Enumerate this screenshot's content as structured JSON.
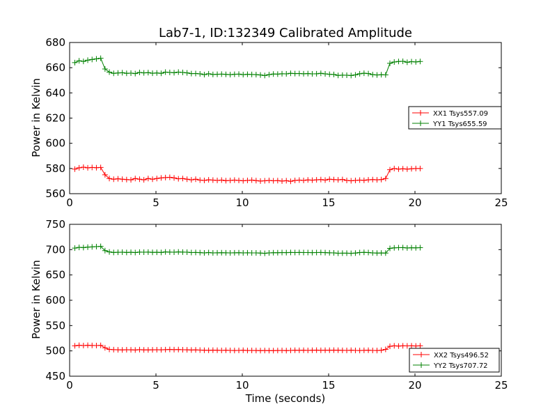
{
  "chart_data": [
    {
      "type": "line",
      "title": "Lab7-1, ID:132349 Calibrated Amplitude",
      "xlabel": "",
      "ylabel": "Power in Kelvin",
      "xlim": [
        0,
        25
      ],
      "ylim": [
        560,
        680
      ],
      "xticks": [
        0,
        5,
        10,
        15,
        20,
        25
      ],
      "yticks": [
        560,
        580,
        600,
        620,
        640,
        660,
        680
      ],
      "grid": false,
      "legend_position": "right",
      "x": [
        0.3,
        0.55,
        0.8,
        1.05,
        1.3,
        1.55,
        1.8,
        2.05,
        2.3,
        2.55,
        2.8,
        3.05,
        3.3,
        3.55,
        3.8,
        4.05,
        4.3,
        4.55,
        4.8,
        5.05,
        5.3,
        5.55,
        5.8,
        6.05,
        6.3,
        6.55,
        6.8,
        7.05,
        7.3,
        7.55,
        7.8,
        8.05,
        8.3,
        8.55,
        8.8,
        9.05,
        9.3,
        9.55,
        9.8,
        10.05,
        10.3,
        10.55,
        10.8,
        11.05,
        11.3,
        11.55,
        11.8,
        12.05,
        12.3,
        12.55,
        12.8,
        13.05,
        13.3,
        13.55,
        13.8,
        14.05,
        14.3,
        14.55,
        14.8,
        15.05,
        15.3,
        15.55,
        15.8,
        16.05,
        16.3,
        16.55,
        16.8,
        17.05,
        17.3,
        17.55,
        17.8,
        18.05,
        18.3,
        18.55,
        18.8,
        19.05,
        19.3,
        19.55,
        19.8,
        20.05,
        20.3
      ],
      "series": [
        {
          "name": "XX1 Tsys557.09",
          "color": "#ff0000",
          "values": [
            579.5,
            580.5,
            581,
            580.5,
            580.8,
            580.6,
            580.8,
            575,
            572,
            571.5,
            571.8,
            571.5,
            571.2,
            571,
            572,
            571.5,
            571,
            572,
            571.5,
            572,
            572.5,
            572.8,
            573,
            572.5,
            571.8,
            572,
            571.5,
            571,
            571.5,
            570.8,
            570.5,
            571,
            570.8,
            570.5,
            570.8,
            570.3,
            570.5,
            570.8,
            570.5,
            570.2,
            570.5,
            570.8,
            570.4,
            570,
            570.2,
            570.5,
            570.2,
            570.4,
            570,
            570.3,
            569.8,
            570.5,
            570.8,
            570.5,
            570.9,
            570.7,
            571,
            571.2,
            570.8,
            571.5,
            571.2,
            571,
            571.3,
            570.5,
            570.2,
            570.5,
            570.8,
            570.6,
            571,
            571.2,
            571,
            571.2,
            572,
            579,
            580,
            579.5,
            579.8,
            579.5,
            579.8,
            580,
            580
          ]
        },
        {
          "name": "YY1 Tsys655.59",
          "color": "#008000",
          "values": [
            664,
            665.5,
            665,
            666,
            666.5,
            667,
            667.5,
            659,
            656.5,
            655.5,
            655.8,
            656,
            655.5,
            655.7,
            655.3,
            656.2,
            655.9,
            656.1,
            655.6,
            655.8,
            655.5,
            656.5,
            656.2,
            656,
            656.5,
            656.2,
            655.9,
            655.3,
            655.4,
            655.1,
            654.5,
            655.2,
            654.6,
            654.8,
            654.9,
            654.7,
            654.5,
            654.8,
            654.9,
            654.5,
            654.8,
            654.6,
            654.5,
            654.2,
            653.8,
            654.5,
            655,
            654.9,
            655.2,
            655.1,
            655.5,
            655.3,
            655.4,
            655.2,
            655.3,
            655.1,
            655.2,
            655.5,
            655.1,
            654.8,
            654.6,
            653.9,
            654.1,
            654,
            653.8,
            654.3,
            655.2,
            655.6,
            655.3,
            654.5,
            654.2,
            654.4,
            654.3,
            663.5,
            664.5,
            664.9,
            665.1,
            664.3,
            664.8,
            664.6,
            664.9
          ]
        }
      ]
    },
    {
      "type": "line",
      "title": "",
      "xlabel": "Time (seconds)",
      "ylabel": "Power in Kelvin",
      "xlim": [
        0,
        25
      ],
      "ylim": [
        450,
        750
      ],
      "xticks": [
        0,
        5,
        10,
        15,
        20,
        25
      ],
      "yticks": [
        450,
        500,
        550,
        600,
        650,
        700,
        750
      ],
      "grid": false,
      "legend_position": "lower-right",
      "x": [
        0.3,
        0.55,
        0.8,
        1.05,
        1.3,
        1.55,
        1.8,
        2.05,
        2.3,
        2.55,
        2.8,
        3.05,
        3.3,
        3.55,
        3.8,
        4.05,
        4.3,
        4.55,
        4.8,
        5.05,
        5.3,
        5.55,
        5.8,
        6.05,
        6.3,
        6.55,
        6.8,
        7.05,
        7.3,
        7.55,
        7.8,
        8.05,
        8.3,
        8.55,
        8.8,
        9.05,
        9.3,
        9.55,
        9.8,
        10.05,
        10.3,
        10.55,
        10.8,
        11.05,
        11.3,
        11.55,
        11.8,
        12.05,
        12.3,
        12.55,
        12.8,
        13.05,
        13.3,
        13.55,
        13.8,
        14.05,
        14.3,
        14.55,
        14.8,
        15.05,
        15.3,
        15.55,
        15.8,
        16.05,
        16.3,
        16.55,
        16.8,
        17.05,
        17.3,
        17.55,
        17.8,
        18.05,
        18.3,
        18.55,
        18.8,
        19.05,
        19.3,
        19.55,
        19.8,
        20.05,
        20.3
      ],
      "series": [
        {
          "name": "XX2 Tsys496.52",
          "color": "#ff0000",
          "values": [
            510,
            511,
            510.5,
            511,
            510.8,
            510.6,
            510.9,
            506,
            503,
            502.5,
            502.2,
            502,
            502.3,
            502.1,
            501.8,
            502.4,
            502,
            501.9,
            502.1,
            502.3,
            502.2,
            502.5,
            502.8,
            502.4,
            502.6,
            502.3,
            502.1,
            501.8,
            501.9,
            501.6,
            501.3,
            501.1,
            501.4,
            501.2,
            501,
            501.2,
            501,
            500.8,
            501,
            501.2,
            500.8,
            501,
            500.7,
            500.5,
            500.8,
            500.6,
            500.5,
            500.7,
            500.9,
            500.6,
            501,
            501.2,
            501.1,
            501.3,
            501,
            501.2,
            501.4,
            501.1,
            501.3,
            501.2,
            501.5,
            501.3,
            501.1,
            500.9,
            501.2,
            501,
            500.8,
            501.1,
            501.3,
            501,
            500.8,
            501.2,
            503,
            509,
            510,
            509.5,
            510,
            509.8,
            510,
            509.7,
            510
          ]
        },
        {
          "name": "YY2 Tsys707.72",
          "color": "#008000",
          "values": [
            703,
            704.5,
            704,
            705,
            705.5,
            706,
            706.5,
            698,
            695.5,
            694.5,
            694.8,
            695,
            694.5,
            694.7,
            694.3,
            695.2,
            694.9,
            695.1,
            694.6,
            694.8,
            694.5,
            695.5,
            695.2,
            695,
            695.5,
            695.2,
            694.9,
            694.3,
            694.4,
            694.1,
            693.5,
            694.2,
            693.6,
            693.8,
            693.9,
            693.7,
            693.5,
            693.8,
            693.9,
            693.5,
            693.8,
            693.6,
            693.5,
            693.2,
            692.8,
            693.5,
            694,
            693.9,
            694.2,
            694.1,
            694.5,
            694.3,
            694.4,
            694.2,
            694.3,
            694.1,
            694.2,
            694.5,
            694.1,
            693.8,
            693.6,
            692.9,
            693.1,
            693,
            692.8,
            693.3,
            694.2,
            694.6,
            694.3,
            693.5,
            693.2,
            693.4,
            693.3,
            702.5,
            703.5,
            703.9,
            704.1,
            703.3,
            703.8,
            703.6,
            703.9
          ]
        }
      ]
    }
  ]
}
